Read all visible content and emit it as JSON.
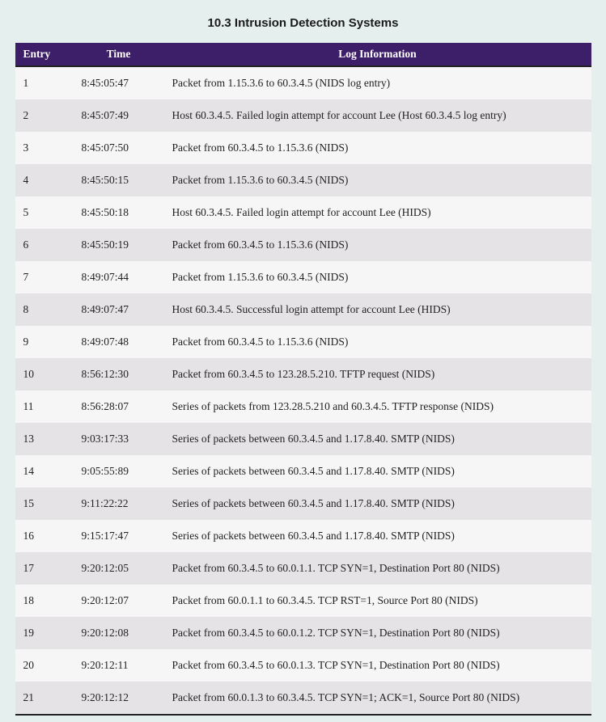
{
  "title": "10.3 Intrusion Detection Systems",
  "table": {
    "columns": {
      "entry": "Entry",
      "time": "Time",
      "info": "Log Information"
    },
    "rows": [
      {
        "entry": "1",
        "time": "8:45:05:47",
        "info": "Packet from 1.15.3.6 to 60.3.4.5 (NIDS log entry)"
      },
      {
        "entry": "2",
        "time": "8:45:07:49",
        "info": "Host 60.3.4.5. Failed login attempt for account Lee (Host 60.3.4.5 log entry)"
      },
      {
        "entry": "3",
        "time": "8:45:07:50",
        "info": "Packet from 60.3.4.5 to 1.15.3.6 (NIDS)"
      },
      {
        "entry": "4",
        "time": "8:45:50:15",
        "info": "Packet from 1.15.3.6 to 60.3.4.5 (NIDS)"
      },
      {
        "entry": "5",
        "time": "8:45:50:18",
        "info": "Host 60.3.4.5. Failed login attempt for account Lee (HIDS)"
      },
      {
        "entry": "6",
        "time": "8:45:50:19",
        "info": "Packet from 60.3.4.5 to 1.15.3.6 (NIDS)"
      },
      {
        "entry": "7",
        "time": "8:49:07:44",
        "info": "Packet from 1.15.3.6 to 60.3.4.5 (NIDS)"
      },
      {
        "entry": "8",
        "time": "8:49:07:47",
        "info": "Host 60.3.4.5. Successful login attempt for account Lee (HIDS)"
      },
      {
        "entry": "9",
        "time": "8:49:07:48",
        "info": "Packet from 60.3.4.5 to 1.15.3.6 (NIDS)"
      },
      {
        "entry": "10",
        "time": "8:56:12:30",
        "info": "Packet from 60.3.4.5 to 123.28.5.210. TFTP request (NIDS)"
      },
      {
        "entry": "11",
        "time": "8:56:28:07",
        "info": "Series of packets from 123.28.5.210 and 60.3.4.5. TFTP response (NIDS)"
      },
      {
        "entry": "13",
        "time": "9:03:17:33",
        "info": "Series of packets between 60.3.4.5 and 1.17.8.40. SMTP (NIDS)"
      },
      {
        "entry": "14",
        "time": "9:05:55:89",
        "info": "Series of packets between 60.3.4.5 and 1.17.8.40. SMTP (NIDS)"
      },
      {
        "entry": "15",
        "time": "9:11:22:22",
        "info": "Series of packets between 60.3.4.5 and 1.17.8.40. SMTP (NIDS)"
      },
      {
        "entry": "16",
        "time": "9:15:17:47",
        "info": "Series of packets between 60.3.4.5 and 1.17.8.40. SMTP (NIDS)"
      },
      {
        "entry": "17",
        "time": "9:20:12:05",
        "info": "Packet from 60.3.4.5 to 60.0.1.1. TCP SYN=1, Destination Port 80 (NIDS)"
      },
      {
        "entry": "18",
        "time": "9:20:12:07",
        "info": "Packet from 60.0.1.1 to 60.3.4.5. TCP RST=1, Source Port 80 (NIDS)"
      },
      {
        "entry": "19",
        "time": "9:20:12:08",
        "info": "Packet from 60.3.4.5 to 60.0.1.2. TCP SYN=1, Destination Port 80 (NIDS)"
      },
      {
        "entry": "20",
        "time": "9:20:12:11",
        "info": "Packet from 60.3.4.5 to 60.0.1.3. TCP SYN=1, Destination Port 80 (NIDS)"
      },
      {
        "entry": "21",
        "time": "9:20:12:12",
        "info": "Packet from 60.0.1.3 to 60.3.4.5. TCP SYN=1; ACK=1, Source Port 80 (NIDS)"
      }
    ],
    "header_bg": "#3d1e68",
    "header_fg": "#ffffff",
    "row_bg_odd": "#f7f6f6",
    "row_bg_even": "#e6e3e7",
    "page_bg": "#e5f0ee",
    "border_color": "#222222",
    "font_body": "Georgia",
    "font_title": "Arial",
    "title_fontsize_pt": 11,
    "body_fontsize_pt": 10
  }
}
